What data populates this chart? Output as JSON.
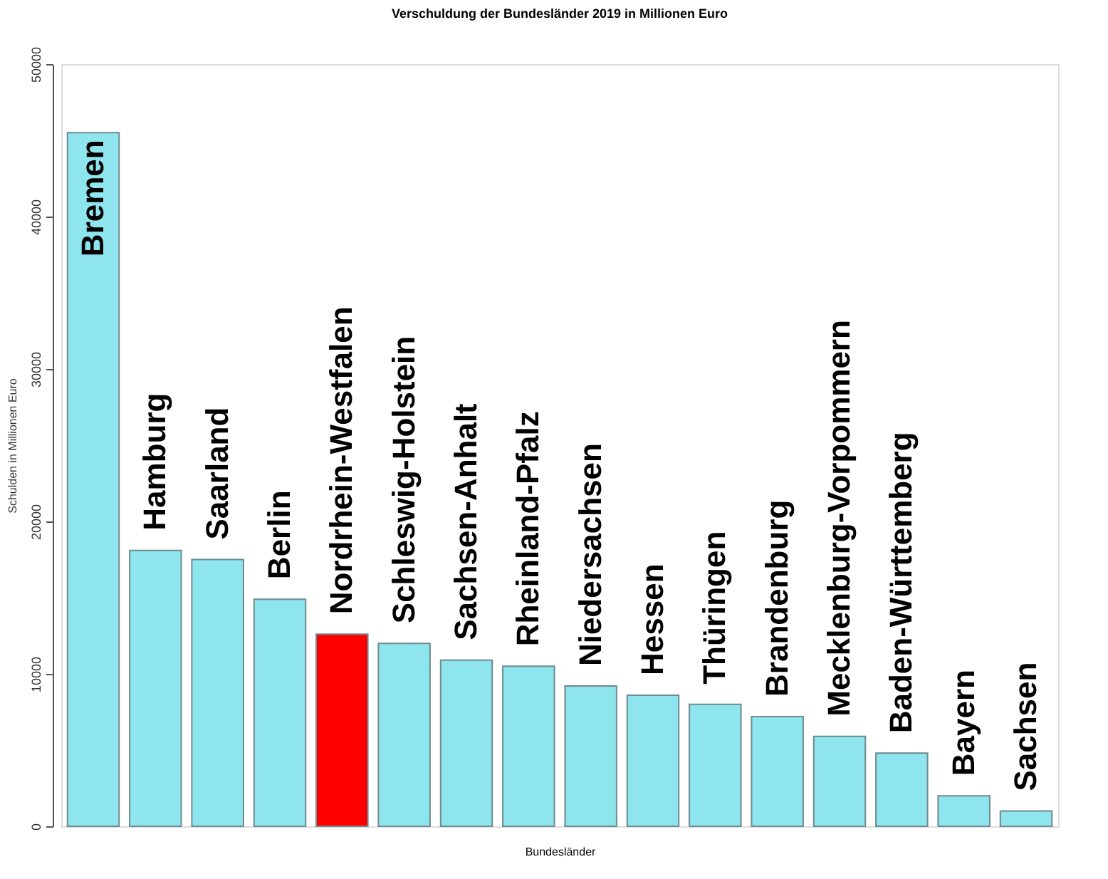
{
  "chart_data": {
    "type": "bar",
    "title": "Verschuldung der Bundesländer 2019 in Millionen Euro",
    "xlabel": "Bundesländer",
    "ylabel": "Schulden in Millionen Euro",
    "categories": [
      "Bremen",
      "Hamburg",
      "Saarland",
      "Berlin",
      "Nordrhein-Westfalen",
      "Schleswig-Holstein",
      "Sachsen-Anhalt",
      "Rheinland-Pfalz",
      "Niedersachsen",
      "Hessen",
      "Thüringen",
      "Brandenburg",
      "Mecklenburg-Vorpommern",
      "Baden-Württemberg",
      "Bayern",
      "Sachsen"
    ],
    "values": [
      45500,
      18100,
      17500,
      14900,
      12600,
      12000,
      10900,
      10500,
      9200,
      8600,
      8000,
      7200,
      5900,
      4800,
      2000,
      1000
    ],
    "colors": [
      "#8ee5ee",
      "#8ee5ee",
      "#8ee5ee",
      "#8ee5ee",
      "#ff0000",
      "#8ee5ee",
      "#8ee5ee",
      "#8ee5ee",
      "#8ee5ee",
      "#8ee5ee",
      "#8ee5ee",
      "#8ee5ee",
      "#8ee5ee",
      "#8ee5ee",
      "#8ee5ee",
      "#8ee5ee"
    ],
    "ylim": [
      0,
      50000
    ],
    "yticks": [
      0,
      10000,
      20000,
      30000,
      40000,
      50000
    ],
    "grid": false,
    "legend": false
  }
}
